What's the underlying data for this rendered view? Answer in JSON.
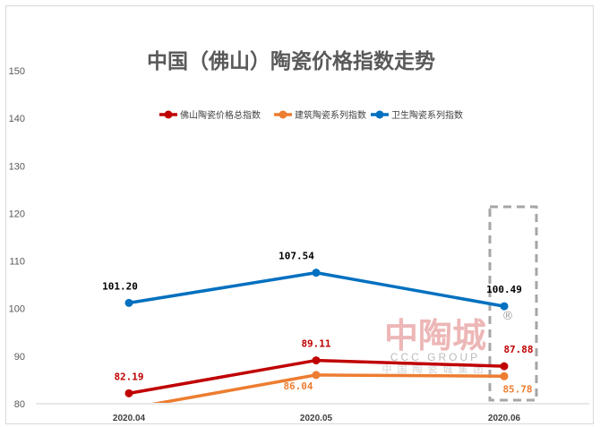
{
  "chart_data": {
    "type": "line",
    "title": "中国（佛山）陶瓷价格指数走势",
    "categories": [
      "2020.04",
      "2020.05",
      "2020.06"
    ],
    "ylim": [
      80,
      150
    ],
    "yticks": [
      80,
      90,
      100,
      110,
      120,
      130,
      140,
      150
    ],
    "grid": false,
    "legend_position": "top",
    "series": [
      {
        "name": "佛山陶瓷价格总指数",
        "values": [
          82.19,
          89.11,
          87.88
        ],
        "labels": [
          "82.19",
          "89.11",
          "87.88"
        ],
        "color": "#c00000"
      },
      {
        "name": "建筑陶瓷系列指数",
        "values": [
          79.0,
          86.04,
          85.78
        ],
        "labels": [
          "",
          "86.04",
          "85.78"
        ],
        "color": "#ed7d31"
      },
      {
        "name": "卫生陶瓷系列指数",
        "values": [
          101.2,
          107.54,
          100.49
        ],
        "labels": [
          "101.20",
          "107.54",
          "100.49"
        ],
        "color": "#0070c0"
      }
    ],
    "highlight_category": "2020.06"
  },
  "watermark": {
    "logo_text": "中陶城",
    "group_text": "CCC GROUP",
    "cn_text": "中国陶瓷城集团",
    "registered_mark": "®"
  }
}
